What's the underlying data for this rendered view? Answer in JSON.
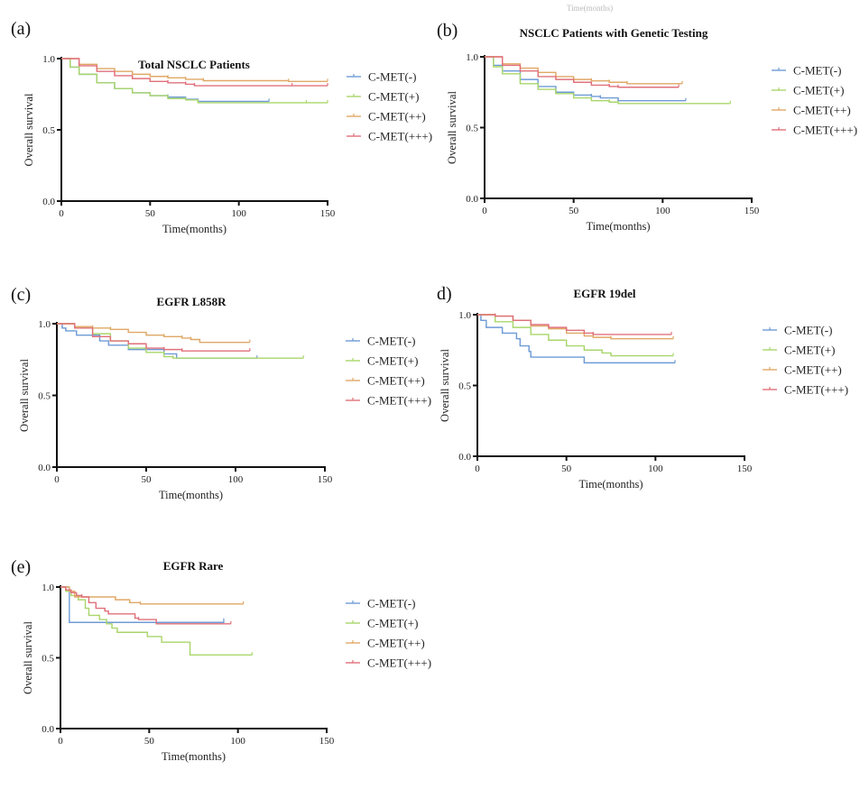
{
  "stray_text": "Time(months)",
  "colors": {
    "C-MET(-)": "#6f9bd6",
    "C-MET(+)": "#a9d66b",
    "C-MET(++)": "#e0a866",
    "C-MET(+++)": "#e0707a"
  },
  "chart_data": [
    {
      "type": "line",
      "subtype": "kaplan-meier",
      "panel": "(a)",
      "title": "Total NSCLC Patients",
      "xlabel": "Time(months)",
      "ylabel": "Overall survival",
      "xlim": [
        0,
        150
      ],
      "ylim": [
        0,
        1.0
      ],
      "xticks": [
        "0",
        "50",
        "100",
        "150"
      ],
      "yticks": [
        "0.0",
        "0.5",
        "1.0"
      ],
      "grid": false,
      "legend_position": "right",
      "series": [
        {
          "name": "C-MET(-)",
          "x": [
            0,
            5,
            10,
            20,
            30,
            40,
            50,
            60,
            70,
            77,
            117
          ],
          "y": [
            1.0,
            0.94,
            0.89,
            0.83,
            0.79,
            0.76,
            0.74,
            0.73,
            0.715,
            0.7,
            0.7
          ]
        },
        {
          "name": "C-MET(+)",
          "x": [
            0,
            5,
            10,
            20,
            30,
            40,
            50,
            60,
            70,
            77,
            138,
            150
          ],
          "y": [
            1.0,
            0.94,
            0.89,
            0.83,
            0.79,
            0.76,
            0.74,
            0.72,
            0.71,
            0.69,
            0.69,
            0.69
          ]
        },
        {
          "name": "C-MET(++)",
          "x": [
            0,
            10,
            20,
            30,
            40,
            50,
            60,
            70,
            80,
            128,
            150
          ],
          "y": [
            1.0,
            0.96,
            0.93,
            0.91,
            0.89,
            0.875,
            0.865,
            0.855,
            0.845,
            0.84,
            0.84
          ]
        },
        {
          "name": "C-MET(+++)",
          "x": [
            0,
            10,
            20,
            30,
            40,
            50,
            60,
            70,
            75,
            130,
            150
          ],
          "y": [
            1.0,
            0.95,
            0.91,
            0.88,
            0.86,
            0.84,
            0.83,
            0.82,
            0.81,
            0.81,
            0.81
          ]
        }
      ]
    },
    {
      "type": "line",
      "subtype": "kaplan-meier",
      "panel": "(b)",
      "title": "NSCLC Patients with Genetic Testing",
      "xlabel": "Time(months)",
      "ylabel": "Overall survival",
      "xlim": [
        0,
        150
      ],
      "ylim": [
        0,
        1.0
      ],
      "xticks": [
        "0",
        "50",
        "100",
        "150"
      ],
      "yticks": [
        "0.0",
        "0.5",
        "1.0"
      ],
      "grid": false,
      "legend_position": "right",
      "series": [
        {
          "name": "C-MET(-)",
          "x": [
            0,
            5,
            10,
            20,
            30,
            40,
            50,
            60,
            65,
            75,
            113
          ],
          "y": [
            1.0,
            0.94,
            0.9,
            0.84,
            0.79,
            0.75,
            0.73,
            0.72,
            0.71,
            0.69,
            0.69
          ]
        },
        {
          "name": "C-MET(+)",
          "x": [
            0,
            5,
            10,
            20,
            30,
            40,
            50,
            60,
            70,
            75,
            138
          ],
          "y": [
            1.0,
            0.93,
            0.88,
            0.81,
            0.77,
            0.74,
            0.71,
            0.69,
            0.68,
            0.67,
            0.67
          ]
        },
        {
          "name": "C-MET(++)",
          "x": [
            0,
            10,
            20,
            30,
            40,
            50,
            60,
            70,
            80,
            111
          ],
          "y": [
            1.0,
            0.95,
            0.92,
            0.89,
            0.86,
            0.84,
            0.83,
            0.82,
            0.81,
            0.81
          ]
        },
        {
          "name": "C-MET(+++)",
          "x": [
            0,
            10,
            20,
            30,
            40,
            50,
            60,
            70,
            75,
            109
          ],
          "y": [
            1.0,
            0.94,
            0.9,
            0.86,
            0.84,
            0.82,
            0.8,
            0.79,
            0.785,
            0.785
          ]
        }
      ]
    },
    {
      "type": "line",
      "subtype": "kaplan-meier",
      "panel": "(c)",
      "title": "EGFR L858R",
      "xlabel": "Time(months)",
      "ylabel": "Overall survival",
      "xlim": [
        0,
        150
      ],
      "ylim": [
        0,
        1.0
      ],
      "xticks": [
        "0",
        "50",
        "100",
        "150"
      ],
      "yticks": [
        "0.0",
        "0.5",
        "1.0"
      ],
      "grid": false,
      "legend_position": "right",
      "series": [
        {
          "name": "C-MET(-)",
          "x": [
            0,
            3,
            5,
            11,
            24,
            29,
            40,
            60,
            67,
            112
          ],
          "y": [
            1.0,
            0.97,
            0.95,
            0.92,
            0.88,
            0.85,
            0.82,
            0.79,
            0.76,
            0.76
          ]
        },
        {
          "name": "C-MET(+)",
          "x": [
            0,
            10,
            20,
            30,
            40,
            50,
            60,
            65,
            138
          ],
          "y": [
            1.0,
            0.97,
            0.93,
            0.88,
            0.83,
            0.8,
            0.77,
            0.76,
            0.76
          ]
        },
        {
          "name": "C-MET(++)",
          "x": [
            0,
            10,
            20,
            30,
            40,
            50,
            60,
            70,
            75,
            80,
            108
          ],
          "y": [
            1.0,
            0.98,
            0.97,
            0.96,
            0.94,
            0.92,
            0.91,
            0.9,
            0.89,
            0.87,
            0.87
          ]
        },
        {
          "name": "C-MET(+++)",
          "x": [
            0,
            10,
            20,
            30,
            40,
            50,
            60,
            70,
            108
          ],
          "y": [
            1.0,
            0.97,
            0.91,
            0.88,
            0.86,
            0.83,
            0.82,
            0.81,
            0.81
          ]
        }
      ]
    },
    {
      "type": "line",
      "subtype": "kaplan-meier",
      "panel": "d)",
      "title": "EGFR 19del",
      "xlabel": "Time(months)",
      "ylabel": "Overall survival",
      "xlim": [
        0,
        150
      ],
      "ylim": [
        0,
        1.0
      ],
      "xticks": [
        "0",
        "50",
        "100",
        "150"
      ],
      "yticks": [
        "0.0",
        "0.5",
        "1.0"
      ],
      "grid": false,
      "legend_position": "right",
      "series": [
        {
          "name": "C-MET(-)",
          "x": [
            0,
            2,
            5,
            14,
            22,
            24,
            29,
            30,
            60,
            111
          ],
          "y": [
            1.0,
            0.96,
            0.91,
            0.87,
            0.83,
            0.78,
            0.74,
            0.7,
            0.66,
            0.66
          ]
        },
        {
          "name": "C-MET(+)",
          "x": [
            0,
            10,
            20,
            30,
            40,
            50,
            60,
            70,
            75,
            110
          ],
          "y": [
            1.0,
            0.95,
            0.91,
            0.86,
            0.82,
            0.78,
            0.75,
            0.73,
            0.71,
            0.71
          ]
        },
        {
          "name": "C-MET(++)",
          "x": [
            0,
            10,
            20,
            30,
            40,
            50,
            60,
            65,
            75,
            110
          ],
          "y": [
            1.0,
            0.99,
            0.96,
            0.92,
            0.9,
            0.87,
            0.85,
            0.84,
            0.83,
            0.83
          ]
        },
        {
          "name": "C-MET(+++)",
          "x": [
            0,
            10,
            20,
            30,
            40,
            50,
            60,
            65,
            109
          ],
          "y": [
            1.0,
            0.99,
            0.96,
            0.93,
            0.91,
            0.89,
            0.87,
            0.86,
            0.86
          ]
        }
      ]
    },
    {
      "type": "line",
      "subtype": "kaplan-meier",
      "panel": "(e)",
      "title": "EGFR Rare",
      "xlabel": "Time(months)",
      "ylabel": "Overall survival",
      "xlim": [
        0,
        150
      ],
      "ylim": [
        0,
        1.0
      ],
      "xticks": [
        "0",
        "50",
        "100",
        "150"
      ],
      "yticks": [
        "0.0",
        "0.5",
        "1.0"
      ],
      "grid": false,
      "legend_position": "right",
      "series": [
        {
          "name": "C-MET(-)",
          "x": [
            0,
            5,
            92
          ],
          "y": [
            1.0,
            0.75,
            0.76
          ]
        },
        {
          "name": "C-MET(+)",
          "x": [
            0,
            3,
            6,
            10,
            14,
            16,
            22,
            26,
            29,
            32,
            49,
            57,
            73,
            108
          ],
          "y": [
            1.0,
            0.97,
            0.94,
            0.91,
            0.85,
            0.8,
            0.77,
            0.74,
            0.71,
            0.68,
            0.65,
            0.61,
            0.52,
            0.52
          ]
        },
        {
          "name": "C-MET(++)",
          "x": [
            0,
            5,
            8,
            31,
            39,
            45,
            103
          ],
          "y": [
            1.0,
            0.97,
            0.93,
            0.91,
            0.89,
            0.88,
            0.88
          ]
        },
        {
          "name": "C-MET(+++)",
          "x": [
            0,
            3,
            6,
            9,
            12,
            16,
            20,
            25,
            27,
            42,
            44,
            54,
            96
          ],
          "y": [
            1.0,
            0.98,
            0.96,
            0.94,
            0.93,
            0.89,
            0.85,
            0.83,
            0.81,
            0.78,
            0.77,
            0.74,
            0.74
          ]
        }
      ]
    }
  ]
}
